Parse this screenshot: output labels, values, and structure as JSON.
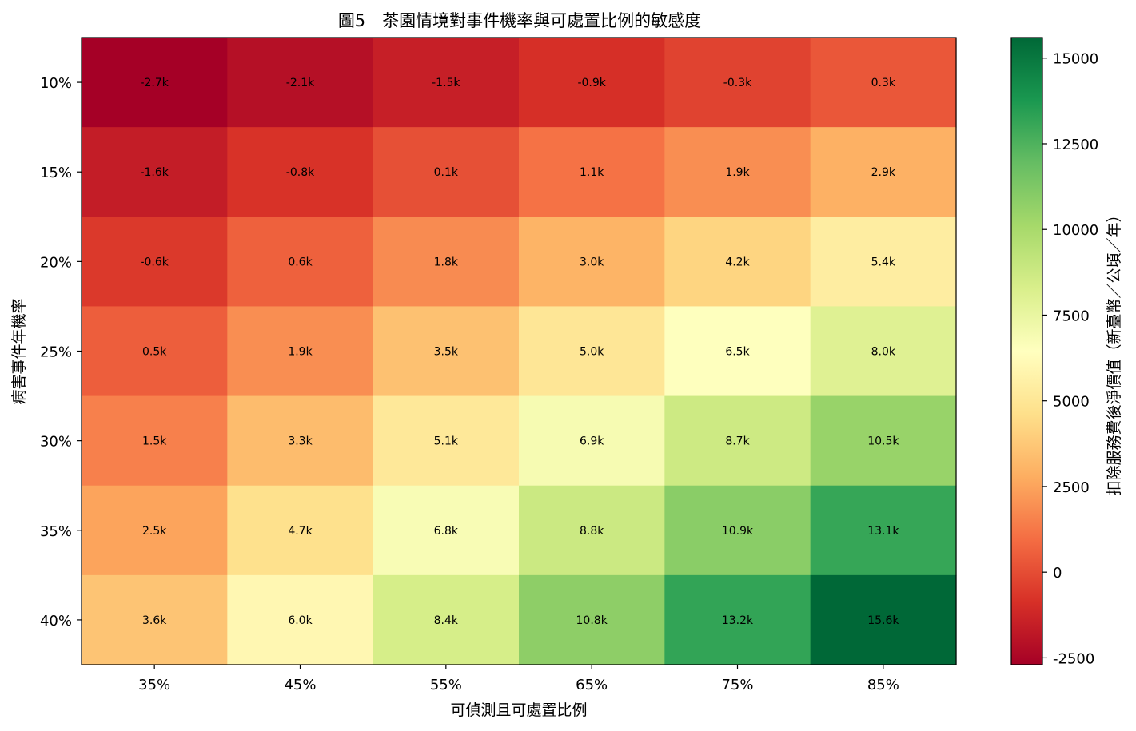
{
  "chart_data": {
    "type": "heatmap",
    "title": "圖5　茶園情境對事件機率與可處置比例的敏感度",
    "xlabel": "可偵測且可處置比例",
    "ylabel": "病害事件年機率",
    "x_categories": [
      "35%",
      "45%",
      "55%",
      "65%",
      "75%",
      "85%"
    ],
    "y_categories": [
      "10%",
      "15%",
      "20%",
      "25%",
      "30%",
      "35%",
      "40%"
    ],
    "values": [
      [
        -2700,
        -2100,
        -1500,
        -900,
        -300,
        300
      ],
      [
        -1600,
        -800,
        100,
        1100,
        1900,
        2900
      ],
      [
        -600,
        600,
        1800,
        3000,
        4200,
        5400
      ],
      [
        500,
        1900,
        3500,
        5000,
        6500,
        8000
      ],
      [
        1500,
        3300,
        5100,
        6900,
        8700,
        10500
      ],
      [
        2500,
        4700,
        6800,
        8800,
        10900,
        13100
      ],
      [
        3600,
        6000,
        8400,
        10800,
        13200,
        15600
      ]
    ],
    "cell_labels": [
      [
        "-2.7k",
        "-2.1k",
        "-1.5k",
        "-0.9k",
        "-0.3k",
        "0.3k"
      ],
      [
        "-1.6k",
        "-0.8k",
        "0.1k",
        "1.1k",
        "1.9k",
        "2.9k"
      ],
      [
        "-0.6k",
        "0.6k",
        "1.8k",
        "3.0k",
        "4.2k",
        "5.4k"
      ],
      [
        "0.5k",
        "1.9k",
        "3.5k",
        "5.0k",
        "6.5k",
        "8.0k"
      ],
      [
        "1.5k",
        "3.3k",
        "5.1k",
        "6.9k",
        "8.7k",
        "10.5k"
      ],
      [
        "2.5k",
        "4.7k",
        "6.8k",
        "8.8k",
        "10.9k",
        "13.1k"
      ],
      [
        "3.6k",
        "6.0k",
        "8.4k",
        "10.8k",
        "13.2k",
        "15.6k"
      ]
    ],
    "colorbar": {
      "label": "扣除服務費後淨價值（新臺幣／公頃／年）",
      "min": -2700,
      "max": 15600,
      "ticks": [
        -2500,
        0,
        2500,
        5000,
        7500,
        10000,
        12500,
        15000
      ],
      "tick_labels": [
        "-2500",
        "0",
        "2500",
        "5000",
        "7500",
        "10000",
        "12500",
        "15000"
      ],
      "colormap": "RdYlGn"
    },
    "grid": false
  }
}
